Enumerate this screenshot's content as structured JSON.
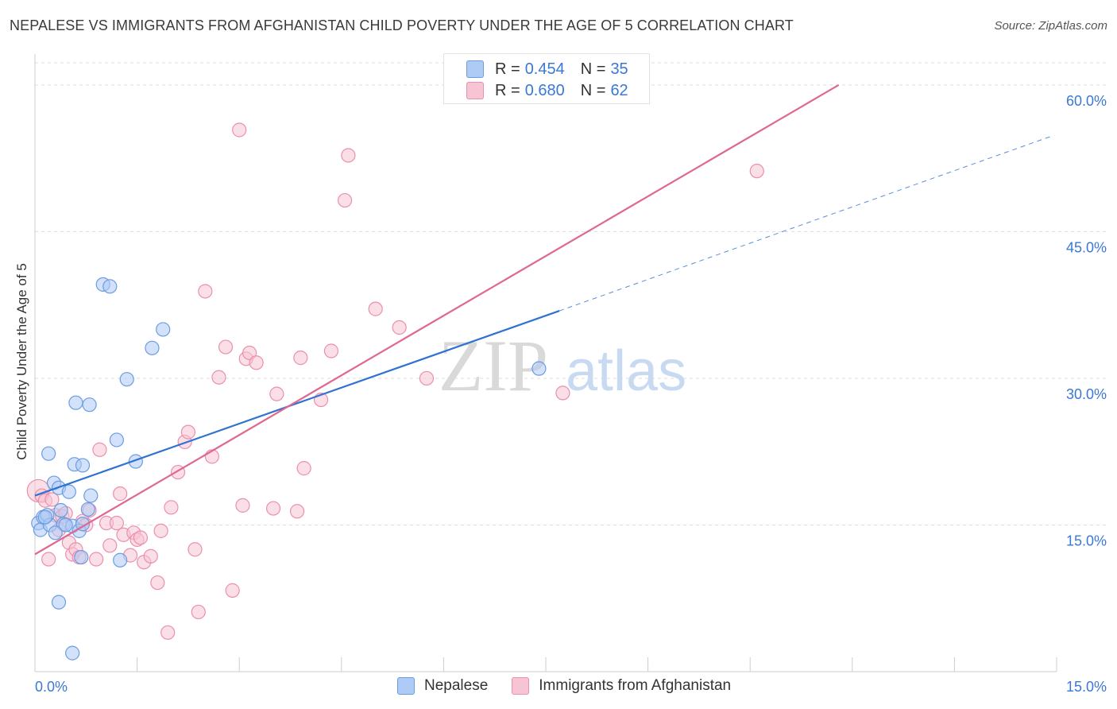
{
  "title": "NEPALESE VS IMMIGRANTS FROM AFGHANISTAN CHILD POVERTY UNDER THE AGE OF 5 CORRELATION CHART",
  "source": "Source: ZipAtlas.com",
  "watermark": {
    "zip": "ZIP",
    "atlas": "atlas"
  },
  "legend": {
    "nepalese": {
      "r_label": "R =",
      "r_value": "0.454",
      "n_label": "N =",
      "n_value": "35"
    },
    "afghan": {
      "r_label": "R =",
      "r_value": "0.680",
      "n_label": "N =",
      "n_value": "62"
    }
  },
  "bottom_legend": {
    "nepalese": "Nepalese",
    "afghan": "Immigrants from Afghanistan"
  },
  "colors": {
    "nepalese_fill": "#aecbf5",
    "nepalese_stroke": "#6a9de0",
    "nepalese_line": "#2f72d0",
    "afghan_fill": "#f7c4d4",
    "afghan_stroke": "#ea8fae",
    "afghan_line": "#e0678f",
    "axis_text": "#3a78d6",
    "grid": "#dddddd"
  },
  "chart_data": {
    "type": "scatter",
    "title": "NEPALESE VS IMMIGRANTS FROM AFGHANISTAN CHILD POVERTY UNDER THE AGE OF 5 CORRELATION CHART",
    "xlabel": "",
    "ylabel": "Child Poverty Under the Age of 5",
    "xlim": [
      0,
      15
    ],
    "ylim": [
      0,
      63
    ],
    "x_tick_labels": {
      "left": "0.0%",
      "right": "15.0%"
    },
    "y_ticks": [
      {
        "value": 15,
        "label": "15.0%"
      },
      {
        "value": 30,
        "label": "30.0%"
      },
      {
        "value": 45,
        "label": "45.0%"
      },
      {
        "value": 60,
        "label": "60.0%"
      }
    ],
    "series": [
      {
        "name": "Nepalese",
        "points": [
          [
            0.05,
            15.2
          ],
          [
            0.08,
            14.5
          ],
          [
            0.12,
            15.8
          ],
          [
            0.18,
            16.0
          ],
          [
            0.2,
            22.3
          ],
          [
            0.22,
            15.0
          ],
          [
            0.28,
            19.3
          ],
          [
            0.35,
            18.8
          ],
          [
            0.38,
            16.5
          ],
          [
            0.42,
            15.1
          ],
          [
            0.5,
            18.4
          ],
          [
            0.55,
            14.9
          ],
          [
            0.58,
            21.2
          ],
          [
            0.65,
            14.4
          ],
          [
            0.7,
            21.1
          ],
          [
            0.78,
            16.6
          ],
          [
            0.82,
            18.0
          ],
          [
            0.6,
            27.5
          ],
          [
            0.8,
            27.3
          ],
          [
            0.68,
            11.7
          ],
          [
            1.0,
            39.6
          ],
          [
            1.1,
            39.4
          ],
          [
            1.2,
            23.7
          ],
          [
            1.25,
            11.4
          ],
          [
            1.35,
            29.9
          ],
          [
            1.48,
            21.5
          ],
          [
            1.72,
            33.1
          ],
          [
            1.88,
            35.0
          ],
          [
            0.35,
            7.1
          ],
          [
            0.55,
            1.9
          ],
          [
            7.4,
            31.0
          ],
          [
            0.15,
            15.8
          ],
          [
            0.45,
            15.0
          ],
          [
            0.7,
            15.1
          ],
          [
            0.3,
            14.2
          ]
        ],
        "trend": {
          "x0": 0,
          "y0": 18.0,
          "x1": 7.7,
          "y1": 36.9,
          "dashed_to_x": 14.9,
          "dashed_to_y": 54.7
        }
      },
      {
        "name": "Immigrants from Afghanistan",
        "points": [
          [
            0.05,
            18.5
          ],
          [
            0.1,
            18.0
          ],
          [
            0.15,
            17.5
          ],
          [
            0.2,
            11.5
          ],
          [
            0.3,
            16.0
          ],
          [
            0.35,
            14.5
          ],
          [
            0.4,
            15.9
          ],
          [
            0.45,
            16.2
          ],
          [
            0.5,
            13.2
          ],
          [
            0.55,
            12.0
          ],
          [
            0.6,
            12.5
          ],
          [
            0.65,
            11.7
          ],
          [
            0.7,
            15.4
          ],
          [
            0.75,
            15.0
          ],
          [
            0.8,
            16.5
          ],
          [
            0.9,
            11.5
          ],
          [
            0.95,
            22.7
          ],
          [
            1.05,
            15.2
          ],
          [
            1.1,
            12.9
          ],
          [
            1.2,
            15.2
          ],
          [
            1.25,
            18.2
          ],
          [
            1.3,
            14.0
          ],
          [
            1.4,
            11.9
          ],
          [
            1.45,
            14.2
          ],
          [
            1.5,
            13.5
          ],
          [
            1.55,
            13.7
          ],
          [
            1.6,
            11.2
          ],
          [
            1.7,
            11.8
          ],
          [
            1.8,
            9.1
          ],
          [
            1.85,
            14.4
          ],
          [
            1.95,
            4.0
          ],
          [
            2.0,
            16.8
          ],
          [
            2.1,
            20.4
          ],
          [
            2.2,
            23.5
          ],
          [
            2.25,
            24.5
          ],
          [
            2.35,
            12.5
          ],
          [
            2.4,
            6.1
          ],
          [
            2.5,
            38.9
          ],
          [
            2.6,
            22.0
          ],
          [
            2.7,
            30.1
          ],
          [
            2.8,
            33.2
          ],
          [
            2.9,
            8.3
          ],
          [
            3.0,
            55.4
          ],
          [
            3.05,
            17.0
          ],
          [
            3.1,
            32.0
          ],
          [
            3.15,
            32.6
          ],
          [
            3.25,
            31.6
          ],
          [
            3.5,
            16.7
          ],
          [
            3.55,
            28.4
          ],
          [
            3.85,
            16.4
          ],
          [
            3.9,
            32.1
          ],
          [
            3.95,
            20.8
          ],
          [
            4.2,
            27.8
          ],
          [
            4.35,
            32.8
          ],
          [
            4.55,
            48.2
          ],
          [
            4.6,
            52.8
          ],
          [
            5.0,
            37.1
          ],
          [
            5.35,
            35.2
          ],
          [
            5.75,
            30.0
          ],
          [
            7.75,
            28.5
          ],
          [
            10.6,
            51.2
          ],
          [
            0.25,
            17.6
          ]
        ],
        "trend": {
          "x0": 0,
          "y0": 12.0,
          "x1": 11.8,
          "y1": 60.0
        }
      }
    ]
  }
}
